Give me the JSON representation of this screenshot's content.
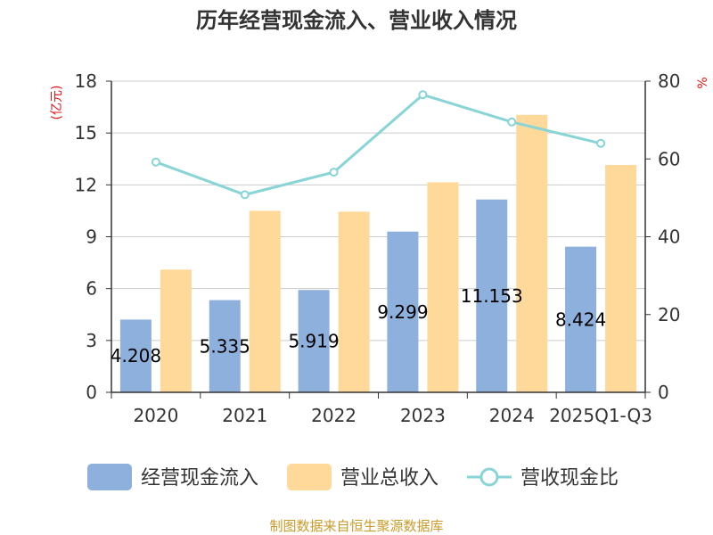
{
  "chart_data": {
    "type": "bar",
    "title": "历年经营现金流入、营业收入情况",
    "ylabel_left": "(亿元)",
    "ylabel_right": "%",
    "categories": [
      "2020",
      "2021",
      "2022",
      "2023",
      "2024",
      "2025Q1-Q3"
    ],
    "ylim_left": [
      0,
      18
    ],
    "yticks_left": [
      0,
      3,
      6,
      9,
      12,
      15,
      18
    ],
    "ylim_right": [
      0,
      80
    ],
    "yticks_right": [
      0,
      20,
      40,
      60,
      80
    ],
    "series": [
      {
        "name": "经营现金流入",
        "type": "bar",
        "axis": "left",
        "color": "#8eb0dc",
        "values": [
          4.208,
          5.335,
          5.919,
          9.299,
          11.153,
          8.424
        ],
        "labels": [
          "4.208",
          "5.335",
          "5.919",
          "9.299",
          "11.153",
          "8.424"
        ]
      },
      {
        "name": "营业总收入",
        "type": "bar",
        "axis": "left",
        "color": "#fed999",
        "values": [
          7.1,
          10.5,
          10.45,
          12.15,
          16.05,
          13.15
        ]
      },
      {
        "name": "营收现金比",
        "type": "line",
        "axis": "right",
        "color": "#88d4d6",
        "values": [
          59.2,
          50.8,
          56.6,
          76.5,
          69.5,
          64.0
        ]
      }
    ],
    "source": "制图数据来自恒生聚源数据库"
  }
}
